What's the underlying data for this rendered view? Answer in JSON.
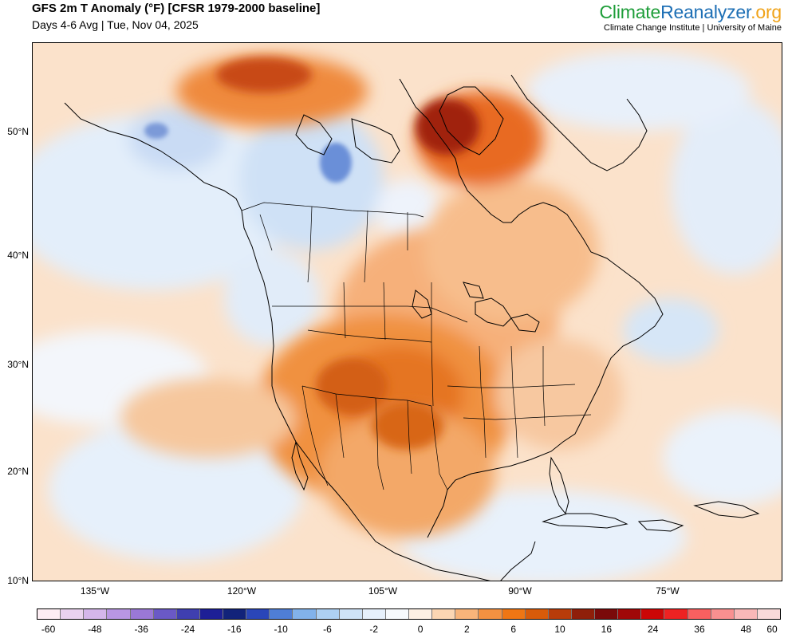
{
  "header": {
    "title": "GFS 2m T Anomaly (°F) [CFSR 1979-2000 baseline]",
    "subtitle": "Days 4-6 Avg | Tue, Nov 04, 2025"
  },
  "brand": {
    "name_part1": "Climate",
    "name_part2": "Reanalyzer",
    "name_part3": ".org",
    "tagline": "Climate Change Institute | University of Maine",
    "colors": {
      "part1": "#1f9e3a",
      "part2": "#1d6fb5",
      "part3": "#f0a319"
    }
  },
  "map": {
    "latitude_labels": [
      "50°N",
      "40°N",
      "30°N",
      "20°N",
      "10°N"
    ],
    "longitude_labels": [
      "135°W",
      "120°W",
      "105°W",
      "90°W",
      "75°W"
    ]
  },
  "colorbar": {
    "ticks": [
      "-60",
      "-48",
      "-36",
      "-24",
      "-16",
      "-10",
      "-6",
      "-2",
      "0",
      "2",
      "6",
      "10",
      "16",
      "24",
      "36",
      "48",
      "60"
    ],
    "colors": [
      "#fdeef4",
      "#e9d2ef",
      "#d4b6ea",
      "#b996e3",
      "#9a78d6",
      "#6a59c6",
      "#3f3fb0",
      "#1d1f96",
      "#12237a",
      "#2a46b8",
      "#4f7ed6",
      "#82b2ea",
      "#aed0f2",
      "#cfe3f7",
      "#e6f0fb",
      "#f6f9fc",
      "#fdf0e4",
      "#fbd6b3",
      "#f8b47a",
      "#f49141",
      "#ef7614",
      "#d85b0a",
      "#b83c0a",
      "#8f1f0a",
      "#7a0a0a",
      "#a00808",
      "#cc0606",
      "#ee2222",
      "#f86060",
      "#f99090",
      "#f9b8b8",
      "#f9dada"
    ]
  }
}
